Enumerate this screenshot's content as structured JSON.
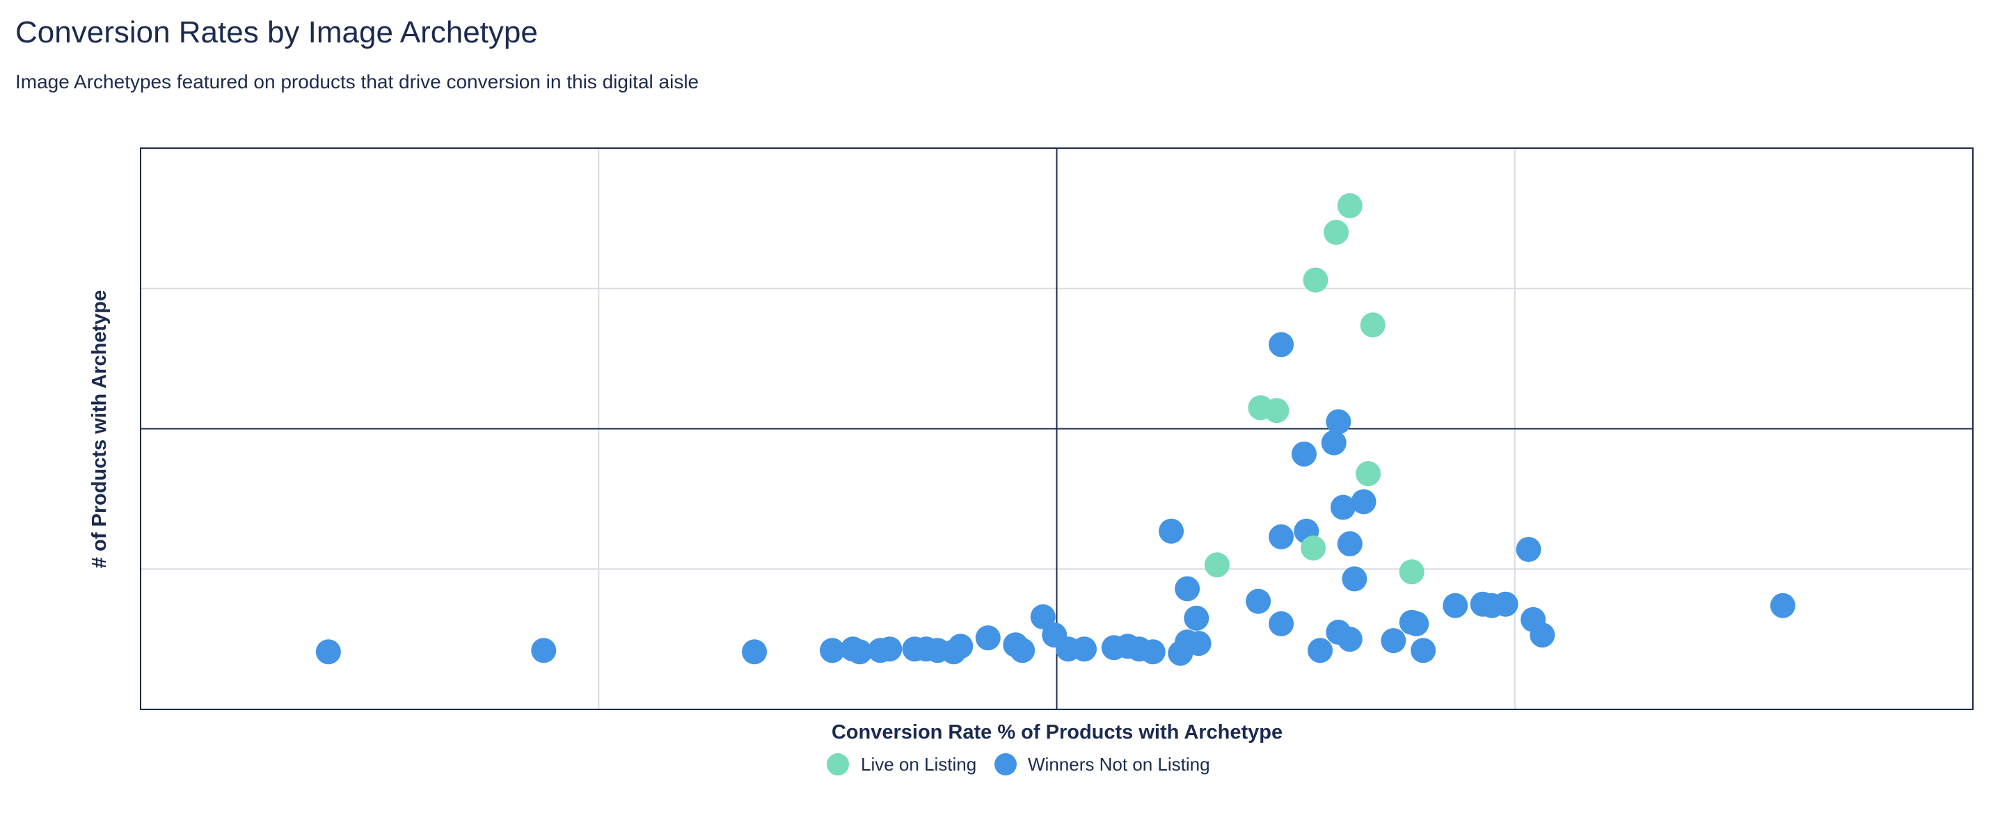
{
  "header": {
    "title": "Conversion Rates by Image Archetype",
    "subtitle": "Image Archetypes featured on products that drive conversion in this digital aisle"
  },
  "chart_data": {
    "type": "scatter",
    "title": "Conversion Rates by Image Archetype",
    "subtitle": "Image Archetypes featured on products that drive conversion in this digital aisle",
    "xlabel": "Conversion Rate % of Products with Archetype",
    "ylabel": "# of Products with Archetype",
    "xlim": [
      0,
      8
    ],
    "ylim": [
      0,
      4
    ],
    "grid": true,
    "tick_labels_shown": false,
    "quadrant_lines": {
      "x": 4,
      "y": 2
    },
    "legend_position": "bottom-center",
    "series": [
      {
        "name": "Live on Listing",
        "color": "#78dbb9",
        "points": [
          {
            "x": 5.28,
            "y": 3.59
          },
          {
            "x": 5.22,
            "y": 3.4
          },
          {
            "x": 5.13,
            "y": 3.06
          },
          {
            "x": 5.38,
            "y": 2.74
          },
          {
            "x": 4.89,
            "y": 2.15
          },
          {
            "x": 4.96,
            "y": 2.13
          },
          {
            "x": 5.36,
            "y": 1.68
          },
          {
            "x": 4.7,
            "y": 1.03
          },
          {
            "x": 5.12,
            "y": 1.15
          },
          {
            "x": 5.55,
            "y": 0.98
          }
        ]
      },
      {
        "name": "Winners Not on Listing",
        "color": "#4394e5",
        "points": [
          {
            "x": 0.82,
            "y": 0.41
          },
          {
            "x": 1.76,
            "y": 0.42
          },
          {
            "x": 2.68,
            "y": 0.41
          },
          {
            "x": 3.02,
            "y": 0.42
          },
          {
            "x": 3.11,
            "y": 0.43
          },
          {
            "x": 3.14,
            "y": 0.41
          },
          {
            "x": 3.23,
            "y": 0.42
          },
          {
            "x": 3.27,
            "y": 0.43
          },
          {
            "x": 3.38,
            "y": 0.43
          },
          {
            "x": 3.43,
            "y": 0.43
          },
          {
            "x": 3.48,
            "y": 0.42
          },
          {
            "x": 3.55,
            "y": 0.41
          },
          {
            "x": 3.58,
            "y": 0.45
          },
          {
            "x": 3.7,
            "y": 0.51
          },
          {
            "x": 3.82,
            "y": 0.46
          },
          {
            "x": 3.85,
            "y": 0.42
          },
          {
            "x": 3.94,
            "y": 0.66
          },
          {
            "x": 3.99,
            "y": 0.53
          },
          {
            "x": 4.05,
            "y": 0.43
          },
          {
            "x": 4.12,
            "y": 0.43
          },
          {
            "x": 4.25,
            "y": 0.44
          },
          {
            "x": 4.31,
            "y": 0.45
          },
          {
            "x": 4.36,
            "y": 0.43
          },
          {
            "x": 4.42,
            "y": 0.41
          },
          {
            "x": 4.54,
            "y": 0.4
          },
          {
            "x": 4.57,
            "y": 0.48
          },
          {
            "x": 4.62,
            "y": 0.47
          },
          {
            "x": 4.61,
            "y": 0.65
          },
          {
            "x": 4.57,
            "y": 0.86
          },
          {
            "x": 4.5,
            "y": 1.27
          },
          {
            "x": 4.88,
            "y": 0.77
          },
          {
            "x": 4.98,
            "y": 0.61
          },
          {
            "x": 4.98,
            "y": 1.23
          },
          {
            "x": 5.09,
            "y": 1.27
          },
          {
            "x": 5.08,
            "y": 1.82
          },
          {
            "x": 5.21,
            "y": 1.9
          },
          {
            "x": 5.23,
            "y": 2.05
          },
          {
            "x": 4.98,
            "y": 2.6
          },
          {
            "x": 5.25,
            "y": 1.44
          },
          {
            "x": 5.34,
            "y": 1.48
          },
          {
            "x": 5.28,
            "y": 1.18
          },
          {
            "x": 5.3,
            "y": 0.93
          },
          {
            "x": 5.15,
            "y": 0.42
          },
          {
            "x": 5.23,
            "y": 0.55
          },
          {
            "x": 5.28,
            "y": 0.5
          },
          {
            "x": 5.47,
            "y": 0.49
          },
          {
            "x": 5.55,
            "y": 0.62
          },
          {
            "x": 5.57,
            "y": 0.61
          },
          {
            "x": 5.6,
            "y": 0.42
          },
          {
            "x": 5.74,
            "y": 0.74
          },
          {
            "x": 5.86,
            "y": 0.75
          },
          {
            "x": 5.9,
            "y": 0.74
          },
          {
            "x": 5.96,
            "y": 0.75
          },
          {
            "x": 6.06,
            "y": 1.14
          },
          {
            "x": 6.08,
            "y": 0.64
          },
          {
            "x": 6.12,
            "y": 0.53
          },
          {
            "x": 7.17,
            "y": 0.74
          }
        ]
      }
    ]
  }
}
